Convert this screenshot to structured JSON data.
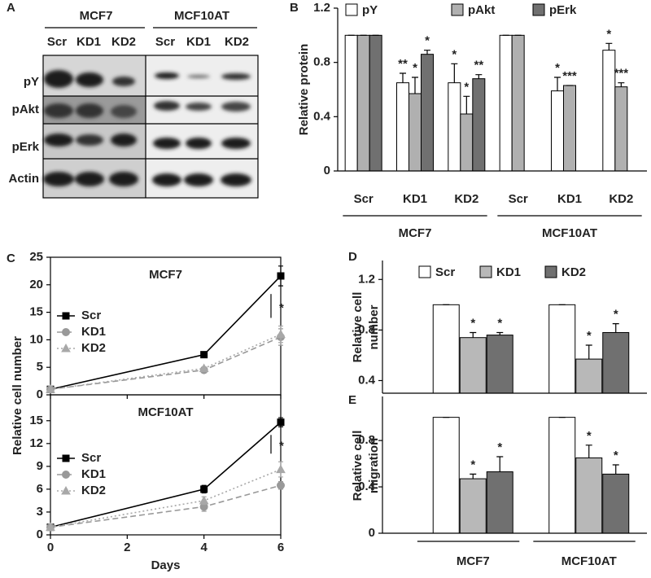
{
  "blot": {
    "label": "A",
    "groups": [
      "MCF7",
      "MCF10AT"
    ],
    "lanes": [
      "Scr",
      "KD1",
      "KD2",
      "Scr",
      "KD1",
      "KD2"
    ],
    "rows": [
      "pY",
      "pAkt",
      "pErk",
      "Actin"
    ]
  },
  "chart_data": [
    {
      "type": "bar",
      "label": "B",
      "ylabel": [
        "Relative protein"
      ],
      "categories": [
        "Scr",
        "KD1",
        "KD2",
        "Scr",
        "KD1",
        "KD2"
      ],
      "groups": [
        "MCF7",
        "MCF10AT"
      ],
      "ylim": [
        0,
        1.2
      ],
      "yticks": [
        0,
        0.4,
        0.8,
        1.2
      ],
      "series": [
        {
          "name": "pY",
          "color": "#ffffff",
          "values": [
            1,
            0.65,
            0.65,
            1,
            0.59,
            0.89
          ],
          "errors": [
            0,
            0.07,
            0.14,
            0,
            0.1,
            0.05
          ],
          "stars": [
            null,
            "**",
            "*",
            null,
            "*",
            "*"
          ]
        },
        {
          "name": "pAkt",
          "color": "#b0b0b0",
          "values": [
            1,
            0.57,
            0.42,
            1,
            0.63,
            0.62
          ],
          "errors": [
            0,
            0.12,
            0.13,
            0,
            0,
            0.03
          ],
          "stars": [
            null,
            "*",
            "*",
            null,
            "***",
            "***"
          ]
        },
        {
          "name": "pErk",
          "color": "#707070",
          "values": [
            1,
            0.86,
            0.68,
            null,
            null,
            null
          ],
          "errors": [
            0,
            0.03,
            0.03,
            null,
            null,
            null
          ],
          "stars": [
            null,
            "*",
            "**",
            null,
            null,
            null
          ]
        }
      ]
    },
    {
      "type": "line",
      "label": "C",
      "title": "MCF7",
      "ylabel": [
        "Relative cell number"
      ],
      "annotation": "*",
      "x": [
        0,
        4,
        6
      ],
      "xlim": [
        0,
        6
      ],
      "xticks": [
        0,
        2,
        4,
        6
      ],
      "ylim": [
        0,
        25
      ],
      "yticks": [
        0,
        5,
        10,
        15,
        20,
        25
      ],
      "series": [
        {
          "name": "Scr",
          "color": "#000000",
          "marker": "square",
          "dash": "solid",
          "values": [
            1,
            7.3,
            21.6
          ],
          "errors": [
            0,
            0.3,
            1.8
          ]
        },
        {
          "name": "KD1",
          "color": "#999999",
          "marker": "circle",
          "dash": "dashed",
          "values": [
            1,
            4.5,
            10.5
          ],
          "errors": [
            0,
            0.3,
            1.5
          ]
        },
        {
          "name": "KD2",
          "color": "#a8a8a8",
          "marker": "triangle",
          "dash": "dotted",
          "values": [
            1,
            4.8,
            11
          ],
          "errors": [
            0,
            0.3,
            1.5
          ]
        }
      ]
    },
    {
      "type": "line",
      "title": "MCF10AT",
      "xlabel": "Days",
      "annotation": "*",
      "x": [
        0,
        4,
        6
      ],
      "xlim": [
        0,
        6
      ],
      "xticks": [
        0,
        2,
        4,
        6
      ],
      "ylim": [
        0,
        18.4
      ],
      "yticks": [
        0,
        3,
        6,
        9,
        12,
        15
      ],
      "series": [
        {
          "name": "Scr",
          "color": "#000000",
          "marker": "square",
          "dash": "solid",
          "values": [
            1,
            6,
            14.8
          ],
          "errors": [
            0,
            0.5,
            0.6
          ]
        },
        {
          "name": "KD1",
          "color": "#999999",
          "marker": "circle",
          "dash": "dashed",
          "values": [
            1,
            3.7,
            6.5
          ],
          "errors": [
            0,
            0.6,
            0.5
          ]
        },
        {
          "name": "KD2",
          "color": "#a8a8a8",
          "marker": "triangle",
          "dash": "dotted",
          "values": [
            1,
            4.5,
            8.6
          ],
          "errors": [
            0,
            0.5,
            1
          ]
        }
      ]
    },
    {
      "type": "bar",
      "label": "D",
      "ylabel": [
        "Relative cell",
        "number"
      ],
      "categories": [
        null,
        null
      ],
      "ylim": [
        0.3,
        1.35
      ],
      "yticks": [
        0.4,
        0.8,
        1.2
      ],
      "series": [
        {
          "name": "Scr",
          "color": "#ffffff",
          "values": [
            1,
            1
          ],
          "errors": [
            0,
            0
          ],
          "stars": [
            null,
            null
          ]
        },
        {
          "name": "KD1",
          "color": "#b8b8b8",
          "values": [
            0.74,
            0.57
          ],
          "errors": [
            0.04,
            0.11
          ],
          "stars": [
            "*",
            "*"
          ]
        },
        {
          "name": "KD2",
          "color": "#707070",
          "values": [
            0.76,
            0.78
          ],
          "errors": [
            0.02,
            0.07
          ],
          "stars": [
            "*",
            "*"
          ]
        }
      ]
    },
    {
      "type": "bar",
      "label": "E",
      "ylabel": [
        "Relative cell",
        "migration"
      ],
      "categories": [
        "MCF7",
        "MCF10AT"
      ],
      "ylim": [
        0,
        1.18
      ],
      "yticks": [
        0,
        0.4,
        0.8
      ],
      "series": [
        {
          "color": "#ffffff",
          "values": [
            1,
            1
          ],
          "errors": [
            0,
            0
          ],
          "stars": [
            null,
            null
          ]
        },
        {
          "color": "#b8b8b8",
          "values": [
            0.47,
            0.65
          ],
          "errors": [
            0.04,
            0.11
          ],
          "stars": [
            "*",
            "*"
          ]
        },
        {
          "color": "#707070",
          "values": [
            0.53,
            0.51
          ],
          "errors": [
            0.13,
            0.08
          ],
          "stars": [
            "*",
            "*"
          ]
        }
      ]
    }
  ]
}
